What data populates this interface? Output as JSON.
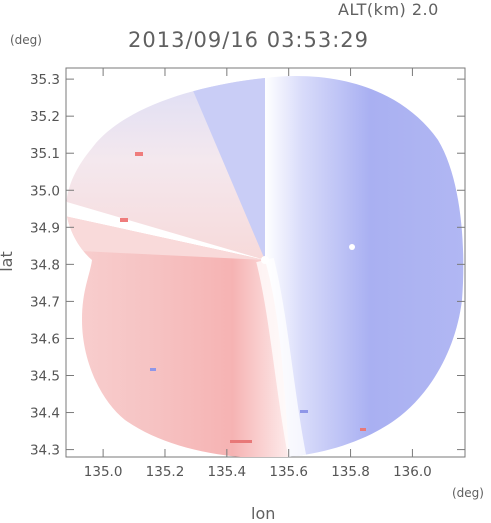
{
  "chart_data": {
    "type": "heatmap",
    "title": "2013/09/16 03:53:29",
    "altitude_label": "ALT(km) 2.0",
    "xlabel": "lon",
    "ylabel": "lat",
    "xunit": "(deg)",
    "yunit": "(deg)",
    "xlim": [
      134.88,
      136.17
    ],
    "ylim": [
      34.28,
      35.33
    ],
    "xticks": [
      "135.0",
      "135.2",
      "135.4",
      "135.6",
      "135.8",
      "136.0"
    ],
    "yticks": [
      "34.3",
      "34.4",
      "34.5",
      "34.6",
      "34.7",
      "34.8",
      "34.9",
      "35.0",
      "35.1",
      "35.2",
      "35.3"
    ],
    "radar_center": {
      "lon": 135.53,
      "lat": 34.81
    },
    "colors": {
      "toward": "#f08080",
      "away": "#8080f0",
      "zero": "#ffffff"
    },
    "grid": false
  }
}
